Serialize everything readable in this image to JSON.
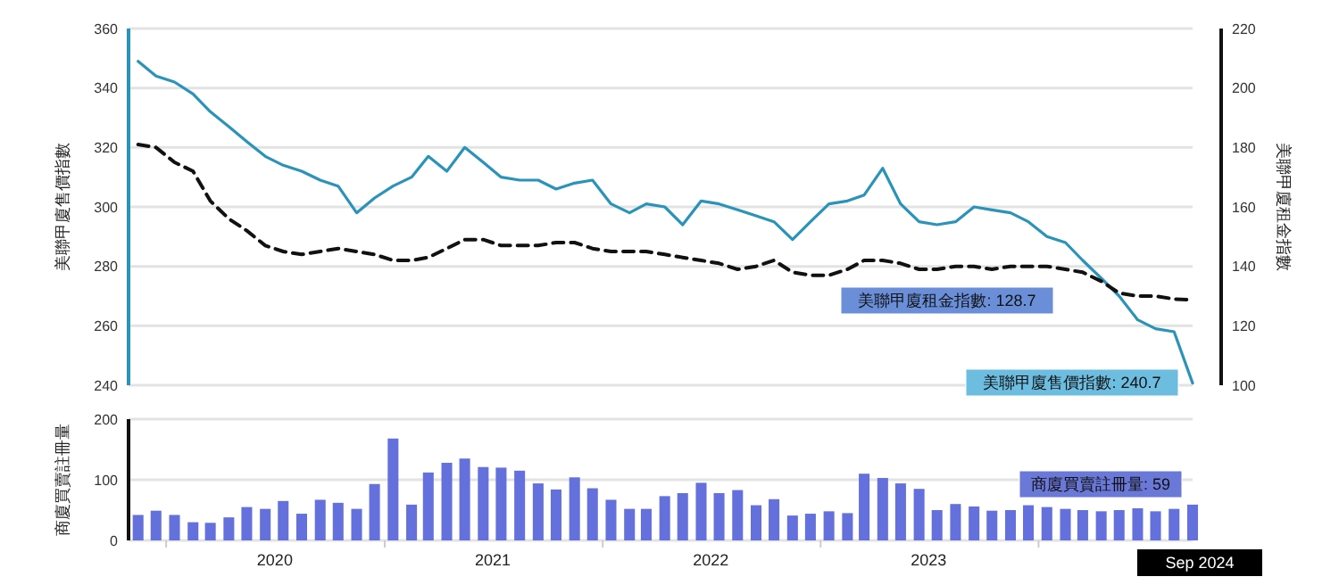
{
  "chart_data": [
    {
      "type": "line",
      "ylabel": "美聯甲廈售價指數",
      "y2label": "美聯甲廈租金指數",
      "x": [
        "2019-11-15",
        "2019-12-15",
        "2020-01-15",
        "2020-02-15",
        "2020-03-15",
        "2020-04-15",
        "2020-05-15",
        "2020-06-15",
        "2020-07-15",
        "2020-08-15",
        "2020-09-15",
        "2020-10-15",
        "2020-11-15",
        "2020-12-15",
        "2021-01-15",
        "2021-02-15",
        "2021-03-15",
        "2021-04-15",
        "2021-05-15",
        "2021-06-15",
        "2021-07-15",
        "2021-08-15",
        "2021-09-15",
        "2021-10-15",
        "2021-11-15",
        "2021-12-15",
        "2022-01-15",
        "2022-02-15",
        "2022-03-15",
        "2022-04-15",
        "2022-05-15",
        "2022-06-15",
        "2022-07-15",
        "2022-08-15",
        "2022-09-15",
        "2022-10-15",
        "2022-11-15",
        "2022-12-15",
        "2023-01-15",
        "2023-02-15",
        "2023-03-15",
        "2023-04-15",
        "2023-05-15",
        "2023-06-15",
        "2023-07-15",
        "2023-08-15",
        "2023-09-15",
        "2023-10-15",
        "2023-11-15",
        "2023-12-15",
        "2024-01-15",
        "2024-02-15",
        "2024-03-15",
        "2024-04-15",
        "2024-05-15",
        "2024-06-15",
        "2024-07-15",
        "2024-08-15",
        "2024-09-15"
      ],
      "xlim": [
        "2019-10-30",
        "2024-09-15"
      ],
      "ylim": [
        240,
        360
      ],
      "yticks": [
        240,
        260,
        280,
        300,
        320,
        340,
        360
      ],
      "y2lim": [
        100,
        220
      ],
      "y2ticks": [
        100,
        120,
        140,
        160,
        180,
        200,
        220
      ],
      "grid": "y",
      "tick_labels": "y",
      "series": [
        {
          "color": "#2a93b9",
          "line_style": "solid",
          "values": [
            349,
            344,
            342,
            338,
            332,
            327,
            322,
            317,
            314,
            312,
            309,
            307,
            298,
            303,
            307,
            310,
            317,
            312,
            320,
            315,
            310,
            309,
            309,
            306,
            308,
            309,
            301,
            298,
            301,
            300,
            294,
            302,
            301,
            299,
            297,
            295,
            289,
            295,
            301,
            302,
            304,
            313,
            301,
            295,
            294,
            295,
            300,
            299,
            298,
            295,
            290,
            288,
            282,
            276,
            270,
            262,
            259,
            258,
            240.7
          ]
        },
        {
          "color": "#111111",
          "line_style": "dashed",
          "axis": "y2",
          "values": [
            181,
            180,
            175,
            172,
            162,
            156,
            152,
            147,
            145,
            144,
            145,
            146,
            145,
            144,
            142,
            142,
            143,
            146,
            149,
            149,
            147,
            147,
            147,
            148,
            148,
            146,
            145,
            145,
            145,
            144,
            143,
            142,
            141,
            139,
            140,
            142,
            138,
            137,
            137,
            139,
            142,
            142,
            141,
            139,
            139,
            140,
            140,
            139,
            140,
            140,
            140,
            139,
            138,
            135,
            131,
            130,
            130,
            129,
            128.7
          ]
        }
      ],
      "annotations": [
        "美聯甲廈租金指數: 128.7",
        {
          "text": "美聯甲廈售價指數: 240.7",
          "x": "2024-09-15"
        }
      ]
    },
    {
      "type": "bar",
      "ylabel": "商廈買賣註冊量",
      "x": [
        "2019-11-15",
        "2019-12-15",
        "2020-01-15",
        "2020-02-15",
        "2020-03-15",
        "2020-04-15",
        "2020-05-15",
        "2020-06-15",
        "2020-07-15",
        "2020-08-15",
        "2020-09-15",
        "2020-10-15",
        "2020-11-15",
        "2020-12-15",
        "2021-01-15",
        "2021-02-15",
        "2021-03-15",
        "2021-04-15",
        "2021-05-15",
        "2021-06-15",
        "2021-07-15",
        "2021-08-15",
        "2021-09-15",
        "2021-10-15",
        "2021-11-15",
        "2021-12-15",
        "2022-01-15",
        "2022-02-15",
        "2022-03-15",
        "2022-04-15",
        "2022-05-15",
        "2022-06-15",
        "2022-07-15",
        "2022-08-15",
        "2022-09-15",
        "2022-10-15",
        "2022-11-15",
        "2022-12-15",
        "2023-01-15",
        "2023-02-15",
        "2023-03-15",
        "2023-04-15",
        "2023-05-15",
        "2023-06-15",
        "2023-07-15",
        "2023-08-15",
        "2023-09-15",
        "2023-10-15",
        "2023-11-15",
        "2023-12-15",
        "2024-01-15",
        "2024-02-15",
        "2024-03-15",
        "2024-04-15",
        "2024-05-15",
        "2024-06-15",
        "2024-07-15",
        "2024-08-15",
        "2024-09-15"
      ],
      "xlim": [
        "2019-10-30",
        "2024-09-15"
      ],
      "ylim": [
        0,
        200
      ],
      "yticks": [
        0,
        100,
        200
      ],
      "grid": "y",
      "xticks": [
        {
          "value": "2020-01-01",
          "label": null
        },
        {
          "value": "2020-07-01",
          "label": "2020"
        },
        {
          "value": "2021-01-01",
          "label": null
        },
        {
          "value": "2021-07-01",
          "label": "2021"
        },
        {
          "value": "2022-01-01",
          "label": null
        },
        {
          "value": "2022-07-01",
          "label": "2022"
        },
        {
          "value": "2023-01-01",
          "label": null
        },
        {
          "value": "2023-07-01",
          "label": "2023"
        },
        {
          "value": "2024-01-01",
          "label": null
        }
      ],
      "series": [
        {
          "color": "#6470dc",
          "values": [
            42,
            49,
            42,
            30,
            29,
            38,
            55,
            52,
            65,
            44,
            67,
            62,
            52,
            93,
            168,
            59,
            112,
            128,
            135,
            121,
            120,
            115,
            94,
            84,
            104,
            86,
            67,
            52,
            52,
            73,
            78,
            95,
            78,
            83,
            58,
            68,
            41,
            44,
            48,
            45,
            110,
            103,
            94,
            85,
            50,
            60,
            56,
            49,
            50,
            58,
            55,
            52,
            50,
            48,
            50,
            53,
            48,
            52,
            59
          ]
        }
      ],
      "annotations": [
        "商廈買賣註冊量: 59",
        "Sep 2024"
      ]
    }
  ]
}
